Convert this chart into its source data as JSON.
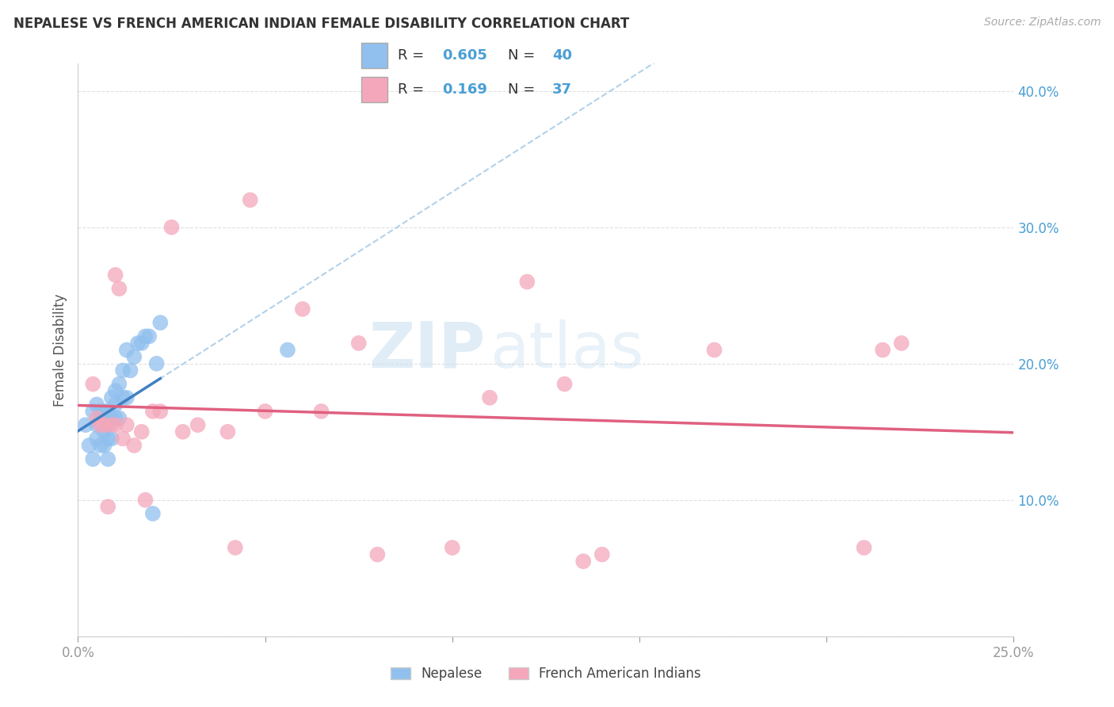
{
  "title": "NEPALESE VS FRENCH AMERICAN INDIAN FEMALE DISABILITY CORRELATION CHART",
  "source": "Source: ZipAtlas.com",
  "ylabel": "Female Disability",
  "xlim": [
    0.0,
    0.25
  ],
  "ylim": [
    0.0,
    0.42
  ],
  "x_ticks": [
    0.0,
    0.05,
    0.1,
    0.15,
    0.2,
    0.25
  ],
  "y_ticks": [
    0.0,
    0.1,
    0.2,
    0.3,
    0.4
  ],
  "y_tick_labels": [
    "",
    "10.0%",
    "20.0%",
    "30.0%",
    "40.0%"
  ],
  "x_tick_labels": [
    "0.0%",
    "",
    "",
    "",
    "",
    "25.0%"
  ],
  "legend_R1": "0.605",
  "legend_N1": "40",
  "legend_R2": "0.169",
  "legend_N2": "37",
  "watermark_left": "ZIP",
  "watermark_right": "atlas",
  "blue_color": "#91c0ee",
  "pink_color": "#f4a7bb",
  "blue_line_color": "#4080c0",
  "pink_line_color": "#e06080",
  "dashed_line_color": "#aacce8",
  "nepalese_points_x": [
    0.002,
    0.003,
    0.004,
    0.004,
    0.005,
    0.005,
    0.005,
    0.006,
    0.006,
    0.006,
    0.007,
    0.007,
    0.007,
    0.007,
    0.008,
    0.008,
    0.008,
    0.008,
    0.009,
    0.009,
    0.009,
    0.01,
    0.01,
    0.01,
    0.011,
    0.011,
    0.012,
    0.012,
    0.013,
    0.013,
    0.014,
    0.015,
    0.016,
    0.017,
    0.018,
    0.019,
    0.02,
    0.021,
    0.022,
    0.056
  ],
  "nepalese_points_y": [
    0.155,
    0.14,
    0.13,
    0.165,
    0.145,
    0.155,
    0.17,
    0.14,
    0.155,
    0.165,
    0.14,
    0.15,
    0.155,
    0.165,
    0.13,
    0.145,
    0.155,
    0.165,
    0.145,
    0.16,
    0.175,
    0.16,
    0.17,
    0.18,
    0.16,
    0.185,
    0.175,
    0.195,
    0.175,
    0.21,
    0.195,
    0.205,
    0.215,
    0.215,
    0.22,
    0.22,
    0.09,
    0.2,
    0.23,
    0.21
  ],
  "french_ai_points_x": [
    0.004,
    0.005,
    0.006,
    0.007,
    0.008,
    0.009,
    0.01,
    0.01,
    0.011,
    0.012,
    0.013,
    0.015,
    0.017,
    0.018,
    0.02,
    0.022,
    0.025,
    0.028,
    0.032,
    0.04,
    0.042,
    0.046,
    0.05,
    0.06,
    0.065,
    0.075,
    0.08,
    0.1,
    0.11,
    0.12,
    0.13,
    0.135,
    0.14,
    0.17,
    0.21,
    0.215,
    0.22
  ],
  "french_ai_points_y": [
    0.185,
    0.16,
    0.155,
    0.155,
    0.095,
    0.155,
    0.155,
    0.265,
    0.255,
    0.145,
    0.155,
    0.14,
    0.15,
    0.1,
    0.165,
    0.165,
    0.3,
    0.15,
    0.155,
    0.15,
    0.065,
    0.32,
    0.165,
    0.24,
    0.165,
    0.215,
    0.06,
    0.065,
    0.175,
    0.26,
    0.185,
    0.055,
    0.06,
    0.21,
    0.065,
    0.21,
    0.215
  ],
  "blue_line_x_start": 0.0,
  "blue_line_x_end": 0.022,
  "background_color": "#ffffff",
  "grid_color": "#e0e0e0"
}
